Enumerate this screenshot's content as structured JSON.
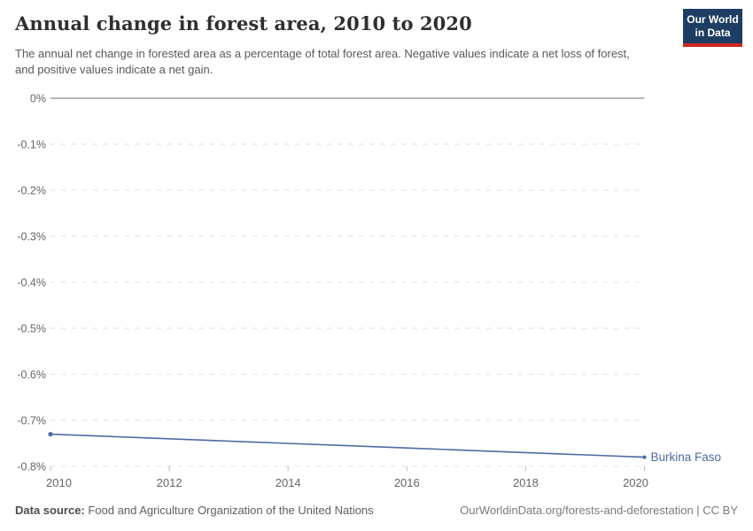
{
  "header": {
    "title": "Annual change in forest area, 2010 to 2020",
    "subtitle": "The annual net change in forested area as a percentage of total forest area. Negative values indicate a net loss of forest, and positive values indicate a net gain."
  },
  "logo": {
    "line1": "Our World",
    "line2": "in Data",
    "bg_color": "#1d3d63",
    "accent_color": "#cf2721"
  },
  "chart_data": {
    "type": "line",
    "title": "Annual change in forest area, 2010 to 2020",
    "subtitle": "The annual net change in forested area as a percentage of total forest area. Negative values indicate a net loss of forest, and positive values indicate a net gain.",
    "unit": "%",
    "x": [
      2010,
      2011,
      2012,
      2013,
      2014,
      2015,
      2016,
      2017,
      2018,
      2019,
      2020
    ],
    "series": [
      {
        "name": "Burkina Faso",
        "color": "#4e6ba3",
        "values": [
          -0.73,
          -0.735,
          -0.74,
          -0.745,
          -0.75,
          -0.755,
          -0.76,
          -0.765,
          -0.77,
          -0.775,
          -0.78
        ]
      }
    ],
    "xlim": [
      2010,
      2020
    ],
    "ylim": [
      -0.8,
      0
    ],
    "yticks": [
      {
        "value": 0,
        "label": "0%"
      },
      {
        "value": -0.1,
        "label": "-0.1%"
      },
      {
        "value": -0.2,
        "label": "-0.2%"
      },
      {
        "value": -0.3,
        "label": "-0.3%"
      },
      {
        "value": -0.4,
        "label": "-0.4%"
      },
      {
        "value": -0.5,
        "label": "-0.5%"
      },
      {
        "value": -0.6,
        "label": "-0.6%"
      },
      {
        "value": -0.7,
        "label": "-0.7%"
      },
      {
        "value": -0.8,
        "label": "-0.8%"
      }
    ],
    "xticks": [
      {
        "value": 2010,
        "label": "2010"
      },
      {
        "value": 2012,
        "label": "2012"
      },
      {
        "value": 2014,
        "label": "2014"
      },
      {
        "value": 2016,
        "label": "2016"
      },
      {
        "value": 2018,
        "label": "2018"
      },
      {
        "value": 2020,
        "label": "2020"
      }
    ],
    "grid": "horizontal-dashed",
    "zero_line": true,
    "legend": "end-of-line entity label",
    "colors": {
      "gridline": "#dcdcdc",
      "zero_line": "#ababab",
      "tick_mark": "#bdbdbd",
      "axis_text": "#666666"
    }
  },
  "footer": {
    "datasource_label": "Data source:",
    "datasource_text": " Food and Agriculture Organization of the United Nations",
    "link_text": "OurWorldinData.org/forests-and-deforestation | CC BY"
  }
}
